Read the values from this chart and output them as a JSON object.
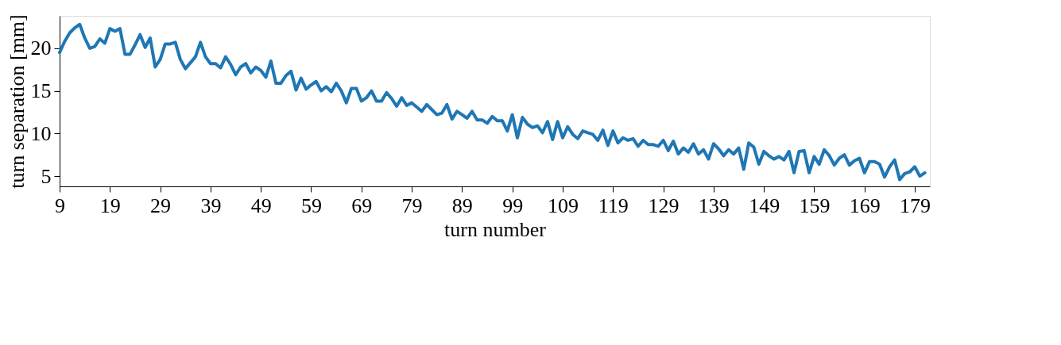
{
  "chart_data": {
    "type": "line",
    "xlabel": "turn number",
    "ylabel": "turn separation [mm]",
    "xlim": [
      9,
      182
    ],
    "ylim": [
      3.8,
      23.8
    ],
    "xticks": [
      9,
      19,
      29,
      39,
      49,
      59,
      69,
      79,
      89,
      99,
      109,
      119,
      129,
      139,
      149,
      159,
      169,
      179
    ],
    "yticks": [
      5,
      10,
      15,
      20
    ],
    "grid": false,
    "marker": "none",
    "line_style": "solid",
    "x": [
      9,
      10,
      11,
      12,
      13,
      14,
      15,
      16,
      17,
      18,
      19,
      20,
      21,
      22,
      23,
      24,
      25,
      26,
      27,
      28,
      29,
      30,
      31,
      32,
      33,
      34,
      35,
      36,
      37,
      38,
      39,
      40,
      41,
      42,
      43,
      44,
      45,
      46,
      47,
      48,
      49,
      50,
      51,
      52,
      53,
      54,
      55,
      56,
      57,
      58,
      59,
      60,
      61,
      62,
      63,
      64,
      65,
      66,
      67,
      68,
      69,
      70,
      71,
      72,
      73,
      74,
      75,
      76,
      77,
      78,
      79,
      80,
      81,
      82,
      83,
      84,
      85,
      86,
      87,
      88,
      89,
      90,
      91,
      92,
      93,
      94,
      95,
      96,
      97,
      98,
      99,
      100,
      101,
      102,
      103,
      104,
      105,
      106,
      107,
      108,
      109,
      110,
      111,
      112,
      113,
      114,
      115,
      116,
      117,
      118,
      119,
      120,
      121,
      122,
      123,
      124,
      125,
      126,
      127,
      128,
      129,
      130,
      131,
      132,
      133,
      134,
      135,
      136,
      137,
      138,
      139,
      140,
      141,
      142,
      143,
      144,
      145,
      146,
      147,
      148,
      149,
      150,
      151,
      152,
      153,
      154,
      155,
      156,
      157,
      158,
      159,
      160,
      161,
      162,
      163,
      164,
      165,
      166,
      167,
      168,
      169,
      170,
      171,
      172,
      173,
      174,
      175,
      176,
      177,
      178,
      179,
      180,
      181
    ],
    "series": [
      {
        "color": "#1f77b4",
        "values": [
          19.5,
          20.8,
          21.8,
          22.4,
          22.8,
          21.2,
          20.0,
          20.2,
          21.1,
          20.6,
          22.3,
          22.0,
          22.3,
          19.3,
          19.3,
          20.4,
          21.6,
          20.1,
          21.2,
          17.8,
          18.7,
          20.5,
          20.5,
          20.7,
          18.7,
          17.6,
          18.3,
          19.0,
          20.7,
          19.0,
          18.2,
          18.2,
          17.7,
          19.0,
          18.1,
          16.9,
          17.8,
          18.2,
          17.1,
          17.8,
          17.4,
          16.6,
          18.5,
          15.9,
          15.9,
          16.8,
          17.3,
          15.1,
          16.5,
          15.2,
          15.7,
          16.1,
          15.0,
          15.5,
          14.9,
          15.9,
          15.0,
          13.6,
          15.3,
          15.3,
          13.8,
          14.2,
          15.0,
          13.8,
          13.8,
          14.8,
          14.1,
          13.2,
          14.2,
          13.3,
          13.6,
          13.1,
          12.6,
          13.4,
          12.8,
          12.2,
          12.4,
          13.4,
          11.7,
          12.6,
          12.2,
          11.8,
          12.6,
          11.6,
          11.6,
          11.2,
          12.0,
          11.5,
          11.5,
          10.3,
          12.2,
          9.5,
          11.9,
          11.1,
          10.7,
          10.9,
          10.1,
          11.4,
          9.3,
          11.4,
          9.5,
          10.8,
          9.9,
          9.4,
          10.3,
          10.1,
          9.9,
          9.2,
          10.4,
          8.6,
          10.3,
          8.9,
          9.5,
          9.2,
          9.4,
          8.5,
          9.2,
          8.7,
          8.7,
          8.5,
          9.2,
          8.0,
          9.1,
          7.6,
          8.3,
          7.8,
          8.8,
          7.6,
          8.1,
          7.0,
          8.8,
          8.2,
          7.4,
          8.1,
          7.6,
          8.3,
          5.8,
          8.9,
          8.4,
          6.4,
          7.9,
          7.4,
          7.0,
          7.3,
          6.9,
          7.9,
          5.4,
          7.9,
          8.0,
          5.4,
          7.3,
          6.4,
          8.1,
          7.4,
          6.3,
          7.1,
          7.5,
          6.3,
          6.8,
          7.1,
          5.4,
          6.7,
          6.7,
          6.4,
          4.9,
          6.1,
          6.9,
          4.6,
          5.3,
          5.5,
          6.1,
          5.0,
          5.4
        ]
      }
    ]
  }
}
